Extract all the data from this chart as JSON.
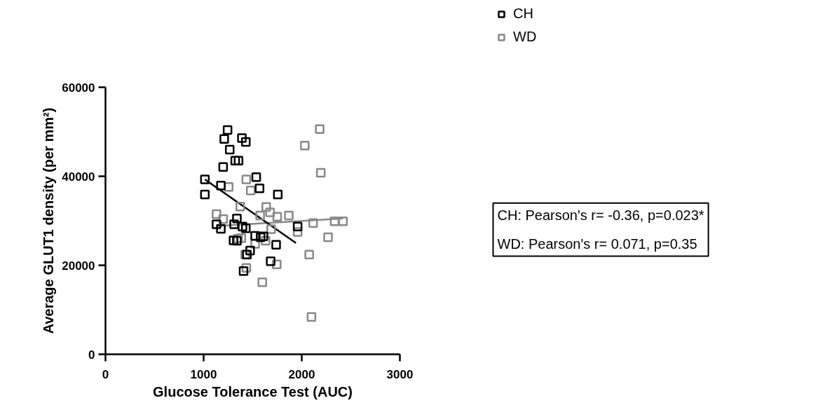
{
  "chart_data": {
    "type": "scatter",
    "xlabel": "Glucose Tolerance Test (AUC)",
    "ylabel": "Average GLUT1 density (per mm²)",
    "xlim": [
      0,
      3000
    ],
    "ylim": [
      0,
      60000
    ],
    "xticks": [
      0,
      1000,
      2000,
      3000
    ],
    "yticks": [
      0,
      20000,
      40000,
      60000
    ],
    "grid": false,
    "legend": "top right",
    "marker": "square",
    "series": [
      {
        "name": "CH",
        "color": "#000000",
        "x": [
          1244,
          1210,
          1390,
          1430,
          1266,
          1322,
          1356,
          1199,
          1013,
          1176,
          1013,
          1536,
          1570,
          1756,
          1131,
          1176,
          1311,
          1339,
          1396,
          1430,
          1305,
          1339,
          1525,
          1581,
          1610,
          1739,
          1474,
          1441,
          1683,
          1407,
          1958
        ],
        "values": [
          50400,
          48400,
          48600,
          47700,
          46000,
          43500,
          43500,
          42100,
          39300,
          37900,
          35900,
          39800,
          37300,
          35900,
          29200,
          28200,
          29200,
          30500,
          28700,
          28300,
          25600,
          25500,
          26600,
          26300,
          26500,
          24600,
          23300,
          22400,
          20900,
          18700,
          28700
        ]
      },
      {
        "name": "WD",
        "color": "#888888",
        "x": [
          1131,
          1199,
          1255,
          1435,
          1480,
          1373,
          1576,
          1638,
          1677,
          1750,
          1868,
          1688,
          1351,
          1384,
          1525,
          1632,
          1424,
          1435,
          1745,
          1598,
          2183,
          2031,
          2194,
          2116,
          2335,
          2420,
          2268,
          1958,
          2076,
          2099
        ],
        "values": [
          31500,
          30400,
          37600,
          39300,
          36800,
          33200,
          31200,
          33100,
          31900,
          30900,
          31200,
          28100,
          26000,
          26100,
          24800,
          25500,
          22400,
          19400,
          20200,
          16200,
          50600,
          46900,
          40800,
          29500,
          29900,
          29900,
          26300,
          27500,
          22400,
          8400
        ]
      },
      {
        "type": "line",
        "color": "#000000",
        "x": [
          1013,
          1941
        ],
        "values": [
          39300,
          25000
        ],
        "marker": "none"
      },
      {
        "type": "line",
        "color": "#888888",
        "x": [
          1131,
          2420
        ],
        "values": [
          28800,
          30500
        ],
        "marker": "none"
      }
    ],
    "annotations": [
      "CH: Pearson's r= -0.36, p=0.023*",
      "WD: Pearson's r= 0.071, p=0.35"
    ]
  }
}
